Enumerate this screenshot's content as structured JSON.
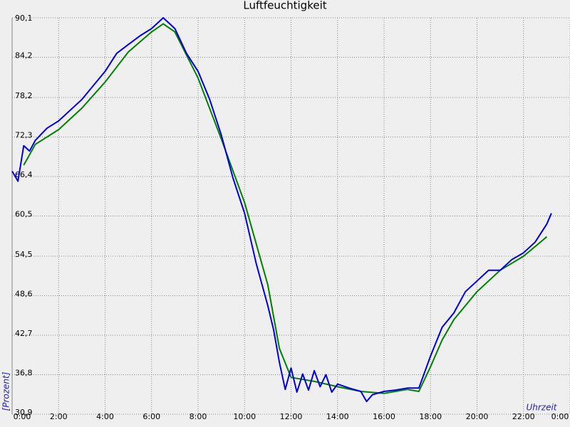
{
  "chart_data": {
    "type": "line",
    "title": "Luftfeuchtigkeit",
    "x_label": "Uhrzeit",
    "y_label": "[Prozent]",
    "xlim": [
      0,
      24
    ],
    "xticks": [
      {
        "value": 0,
        "label": "0:00"
      },
      {
        "value": 2,
        "label": "2:00"
      },
      {
        "value": 4,
        "label": "4:00"
      },
      {
        "value": 6,
        "label": "6:00"
      },
      {
        "value": 8,
        "label": "8:00"
      },
      {
        "value": 10,
        "label": "10:00"
      },
      {
        "value": 12,
        "label": "12:00"
      },
      {
        "value": 14,
        "label": "14:00"
      },
      {
        "value": 16,
        "label": "16:00"
      },
      {
        "value": 18,
        "label": "18:00"
      },
      {
        "value": 20,
        "label": "20:00"
      },
      {
        "value": 22,
        "label": "22:00"
      },
      {
        "value": 24,
        "label": "0:00"
      }
    ],
    "ylim": [
      30.9,
      90.1
    ],
    "yticks": [
      {
        "value": 30.9,
        "label": "30,9"
      },
      {
        "value": 36.8,
        "label": "36,8"
      },
      {
        "value": 42.7,
        "label": "42,7"
      },
      {
        "value": 48.6,
        "label": "48,6"
      },
      {
        "value": 54.5,
        "label": "54,5"
      },
      {
        "value": 60.5,
        "label": "60,5"
      },
      {
        "value": 66.4,
        "label": "66,4"
      },
      {
        "value": 72.3,
        "label": "72,3"
      },
      {
        "value": 78.2,
        "label": "78,2"
      },
      {
        "value": 84.2,
        "label": "84,2"
      },
      {
        "value": 90.1,
        "label": "90,1"
      }
    ],
    "grid": true,
    "series": [
      {
        "color": "#0000dd",
        "x": [
          0,
          0.25,
          0.5,
          0.75,
          1,
          1.5,
          2,
          2.5,
          3,
          3.5,
          4,
          4.5,
          5,
          5.5,
          6,
          6.5,
          7,
          7.5,
          8,
          8.5,
          9,
          9.5,
          10,
          10.5,
          11,
          11.25,
          11.5,
          11.75,
          12,
          12.25,
          12.5,
          12.75,
          13,
          13.25,
          13.5,
          13.75,
          14,
          14.5,
          15,
          15.25,
          15.5,
          16,
          16.5,
          17,
          17.5,
          18,
          18.5,
          19,
          19.5,
          20,
          20.5,
          21,
          21.5,
          22,
          22.5,
          23,
          23.2
        ],
        "values": [
          67.2,
          65.7,
          71.0,
          70.2,
          71.8,
          73.6,
          74.7,
          76.3,
          77.9,
          80.0,
          82.1,
          84.8,
          86.1,
          87.4,
          88.5,
          90.1,
          88.5,
          84.8,
          82.1,
          77.9,
          72.6,
          66.2,
          60.9,
          53.4,
          47.1,
          43.5,
          38.6,
          34.6,
          37.8,
          34.2,
          36.9,
          34.5,
          37.4,
          35.0,
          36.8,
          34.2,
          35.4,
          34.8,
          34.3,
          32.8,
          33.8,
          34.3,
          34.5,
          34.8,
          34.8,
          39.6,
          43.9,
          46.0,
          49.2,
          50.8,
          52.4,
          52.4,
          54.0,
          55.0,
          56.6,
          59.3,
          60.9
        ]
      },
      {
        "color": "#008000",
        "x": [
          0.5,
          1,
          2,
          3,
          4,
          5,
          6,
          6.5,
          7,
          8,
          9,
          10,
          11,
          11.5,
          12,
          13,
          14,
          15,
          16,
          17,
          17.5,
          18,
          18.5,
          19,
          20,
          21,
          22,
          23
        ],
        "values": [
          68.1,
          71.2,
          73.4,
          76.6,
          80.5,
          85.0,
          88.0,
          89.2,
          88.0,
          81.1,
          72.0,
          62.5,
          50.2,
          40.7,
          36.4,
          35.8,
          35.0,
          34.3,
          34.0,
          34.6,
          34.3,
          38.0,
          42.0,
          45.0,
          49.2,
          52.4,
          54.5,
          57.4
        ]
      }
    ]
  }
}
